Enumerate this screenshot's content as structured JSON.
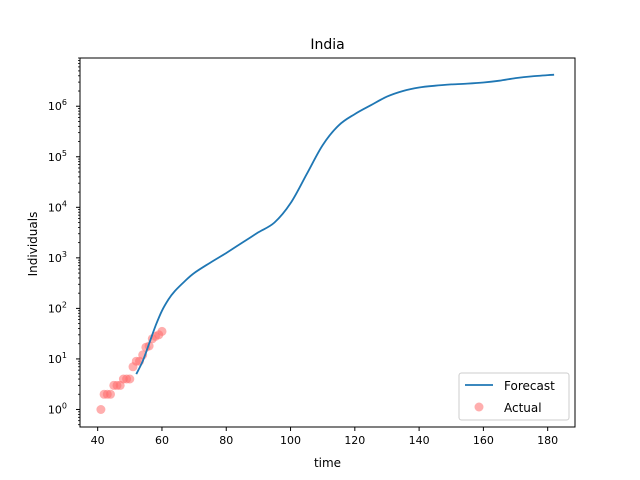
{
  "chart_data": {
    "type": "line",
    "title": "India",
    "xlabel": "time",
    "ylabel": "Individuals",
    "xlim": [
      34.5,
      188.5
    ],
    "ylim": [
      0.45,
      9000000
    ],
    "yscale": "log",
    "grid": false,
    "legend_position": "lower right",
    "xticks": [
      40,
      60,
      80,
      100,
      120,
      140,
      160,
      180
    ],
    "xtick_labels": [
      "40",
      "60",
      "80",
      "100",
      "120",
      "140",
      "160",
      "180"
    ],
    "yticks": [
      {
        "base": "10",
        "exp": "0",
        "value": 1
      },
      {
        "base": "10",
        "exp": "1",
        "value": 10
      },
      {
        "base": "10",
        "exp": "2",
        "value": 100
      },
      {
        "base": "10",
        "exp": "3",
        "value": 1000
      },
      {
        "base": "10",
        "exp": "4",
        "value": 10000
      },
      {
        "base": "10",
        "exp": "5",
        "value": 100000
      },
      {
        "base": "10",
        "exp": "6",
        "value": 1000000
      }
    ],
    "series": [
      {
        "name": "Forecast",
        "kind": "line",
        "color": "#1f77b4",
        "x": [
          52,
          54,
          56,
          58,
          60,
          62,
          64,
          67,
          70,
          75,
          80,
          85,
          90,
          95,
          100,
          105,
          110,
          115,
          120,
          125,
          130,
          135,
          140,
          145,
          150,
          155,
          160,
          165,
          170,
          175,
          182
        ],
        "y": [
          5,
          9,
          20,
          45,
          90,
          150,
          220,
          340,
          500,
          800,
          1250,
          2000,
          3200,
          5000,
          12000,
          45000,
          170000,
          420000,
          700000,
          1050000,
          1550000,
          2000000,
          2350000,
          2550000,
          2700000,
          2800000,
          2950000,
          3200000,
          3600000,
          3900000,
          4200000
        ]
      },
      {
        "name": "Actual",
        "kind": "scatter",
        "color": "#ff6b6b",
        "x": [
          41,
          42,
          43,
          44,
          45,
          46,
          47,
          48,
          49,
          50,
          51,
          52,
          53,
          54,
          55,
          56,
          57,
          58,
          59,
          60
        ],
        "y": [
          1,
          2,
          2,
          2,
          3,
          3,
          3,
          4,
          4,
          4,
          7,
          9,
          9,
          12,
          17,
          18,
          25,
          28,
          30,
          35
        ]
      }
    ]
  }
}
